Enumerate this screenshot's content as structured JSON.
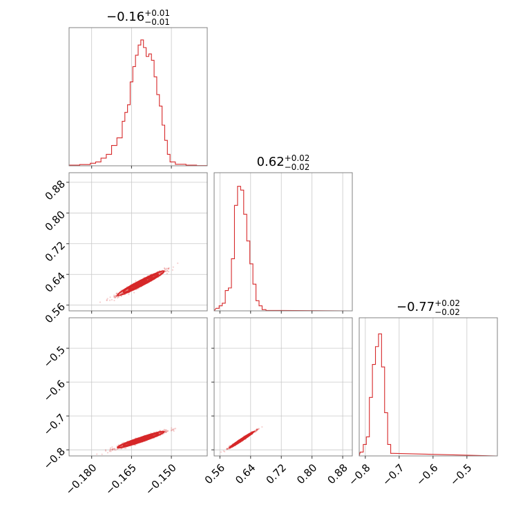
{
  "chart_data": {
    "type": "corner",
    "color": "#d62728",
    "grid": true,
    "parameters": [
      {
        "title": {
          "value": "−0.16",
          "plus": "+0.01",
          "minus": "−0.01"
        },
        "range": [
          -0.1885,
          -0.1365
        ],
        "ticks": [
          -0.18,
          -0.165,
          -0.15
        ],
        "tick_labels": [
          "−0.180",
          "−0.165",
          "−0.150"
        ],
        "hist_mean": -0.1615,
        "hist_sd": 0.0044
      },
      {
        "title": {
          "value": "0.62",
          "plus": "+0.02",
          "minus": "−0.02"
        },
        "range": [
          0.545,
          0.905
        ],
        "ticks": [
          0.56,
          0.64,
          0.72,
          0.8,
          0.88
        ],
        "tick_labels": [
          "0.56",
          "0.64",
          "0.72",
          "0.80",
          "0.88"
        ],
        "hist_mean": 0.617,
        "hist_sd": 0.016
      },
      {
        "title": {
          "value": "−0.77",
          "plus": "+0.02",
          "minus": "−0.02"
        },
        "range": [
          -0.818,
          -0.41
        ],
        "ticks": [
          -0.8,
          -0.7,
          -0.6,
          -0.5
        ],
        "tick_labels": [
          "−0.8",
          "−0.7",
          "−0.6",
          "−0.5"
        ],
        "hist_mean": -0.77,
        "hist_sd": 0.012
      }
    ],
    "histograms": [
      {
        "param": 0,
        "bins": [
          [
            -0.1885,
            -0.1845,
            0.005
          ],
          [
            -0.1845,
            -0.1805,
            0.01
          ],
          [
            -0.1805,
            -0.1785,
            0.02
          ],
          [
            -0.1785,
            -0.1765,
            0.03
          ],
          [
            -0.1765,
            -0.1745,
            0.06
          ],
          [
            -0.1745,
            -0.1725,
            0.09
          ],
          [
            -0.1725,
            -0.1705,
            0.16
          ],
          [
            -0.1705,
            -0.1685,
            0.22
          ],
          [
            -0.1685,
            -0.1675,
            0.35
          ],
          [
            -0.1675,
            -0.1665,
            0.42
          ],
          [
            -0.1665,
            -0.1655,
            0.48
          ],
          [
            -0.1655,
            -0.1645,
            0.66
          ],
          [
            -0.1645,
            -0.1635,
            0.78
          ],
          [
            -0.1635,
            -0.1625,
            0.87
          ],
          [
            -0.1625,
            -0.1615,
            0.95
          ],
          [
            -0.1615,
            -0.1605,
            0.99
          ],
          [
            -0.1605,
            -0.1595,
            0.93
          ],
          [
            -0.1595,
            -0.1585,
            0.86
          ],
          [
            -0.1585,
            -0.1575,
            0.88
          ],
          [
            -0.1575,
            -0.1565,
            0.83
          ],
          [
            -0.1565,
            -0.1555,
            0.7
          ],
          [
            -0.1555,
            -0.1545,
            0.56
          ],
          [
            -0.1545,
            -0.1535,
            0.47
          ],
          [
            -0.1535,
            -0.1525,
            0.32
          ],
          [
            -0.1525,
            -0.1515,
            0.2
          ],
          [
            -0.1515,
            -0.1505,
            0.09
          ],
          [
            -0.1505,
            -0.1485,
            0.03
          ],
          [
            -0.1485,
            -0.1445,
            0.012
          ],
          [
            -0.1445,
            -0.1405,
            0.005
          ],
          [
            -0.1405,
            -0.1365,
            0.002
          ]
        ]
      },
      {
        "param": 1,
        "bins": [
          [
            0.55,
            0.558,
            0.02
          ],
          [
            0.558,
            0.566,
            0.04
          ],
          [
            0.566,
            0.574,
            0.06
          ],
          [
            0.574,
            0.582,
            0.16
          ],
          [
            0.582,
            0.59,
            0.18
          ],
          [
            0.59,
            0.598,
            0.41
          ],
          [
            0.598,
            0.606,
            0.83
          ],
          [
            0.606,
            0.614,
            0.98
          ],
          [
            0.614,
            0.622,
            0.95
          ],
          [
            0.622,
            0.63,
            0.76
          ],
          [
            0.63,
            0.638,
            0.55
          ],
          [
            0.638,
            0.646,
            0.37
          ],
          [
            0.646,
            0.654,
            0.21
          ],
          [
            0.654,
            0.662,
            0.08
          ],
          [
            0.662,
            0.67,
            0.04
          ],
          [
            0.67,
            0.68,
            0.01
          ],
          [
            0.68,
            0.72,
            0.003
          ]
        ]
      },
      {
        "param": 2,
        "bins": [
          [
            -0.815,
            -0.806,
            0.03
          ],
          [
            -0.806,
            -0.797,
            0.09
          ],
          [
            -0.797,
            -0.788,
            0.15
          ],
          [
            -0.788,
            -0.779,
            0.46
          ],
          [
            -0.779,
            -0.77,
            0.72
          ],
          [
            -0.77,
            -0.761,
            0.86
          ],
          [
            -0.761,
            -0.752,
            0.96
          ],
          [
            -0.752,
            -0.743,
            0.7
          ],
          [
            -0.743,
            -0.734,
            0.34
          ],
          [
            -0.734,
            -0.725,
            0.09
          ],
          [
            -0.725,
            -0.716,
            0.02
          ]
        ]
      }
    ],
    "scatter": [
      {
        "xparam": 0,
        "yparam": 1,
        "corr": 0.97
      },
      {
        "xparam": 0,
        "yparam": 2,
        "corr": 0.96
      },
      {
        "xparam": 1,
        "yparam": 2,
        "corr": 0.99
      }
    ]
  }
}
